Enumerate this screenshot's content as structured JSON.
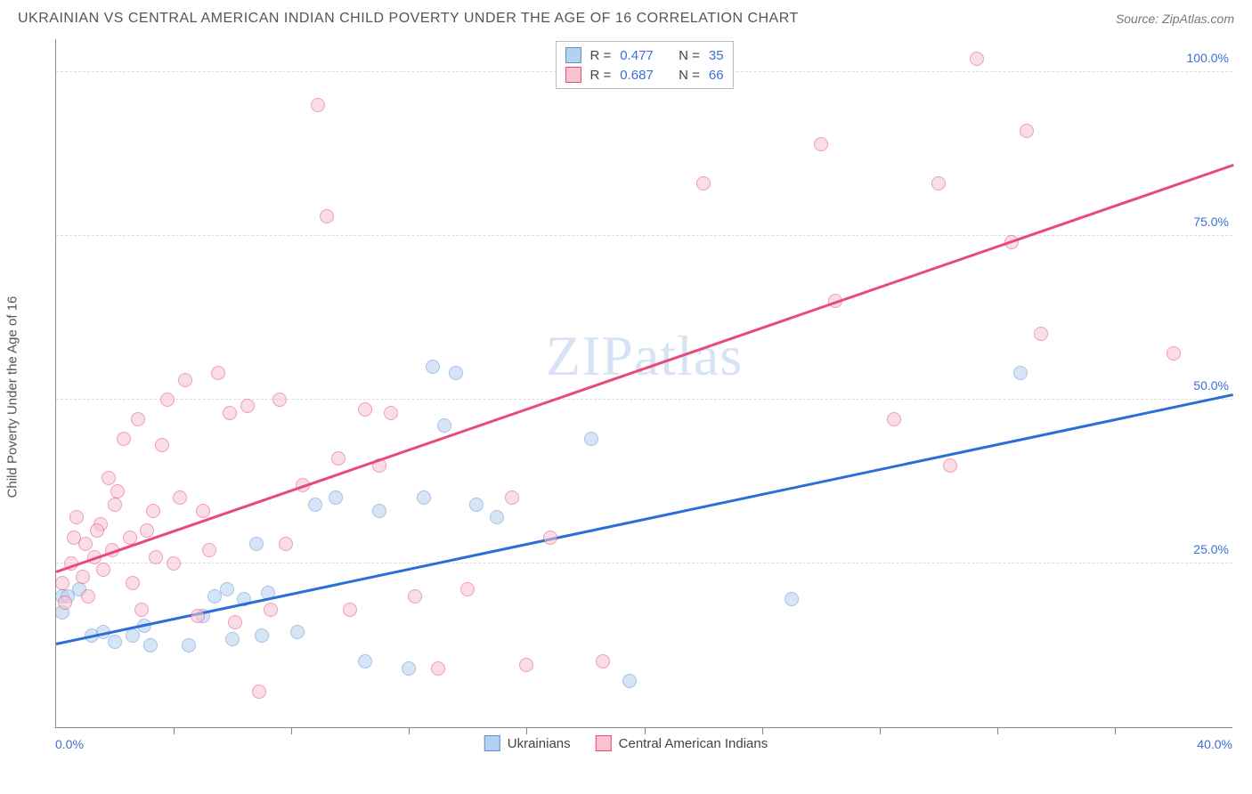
{
  "title": "UKRAINIAN VS CENTRAL AMERICAN INDIAN CHILD POVERTY UNDER THE AGE OF 16 CORRELATION CHART",
  "source": "Source: ZipAtlas.com",
  "ylabel": "Child Poverty Under the Age of 16",
  "watermark": "ZIPatlas",
  "chart": {
    "type": "scatter",
    "background_color": "#ffffff",
    "grid_color": "#dddddd",
    "axis_color": "#888888",
    "xlim": [
      0,
      40
    ],
    "ylim": [
      0,
      105
    ],
    "x_ticks": [
      0,
      20,
      40
    ],
    "x_tick_labels": [
      "0.0%",
      "",
      "40.0%"
    ],
    "y_gridlines": [
      25,
      50,
      75,
      100
    ],
    "y_tick_labels": [
      "25.0%",
      "50.0%",
      "75.0%",
      "100.0%"
    ],
    "tick_label_color": "#3b6fd6",
    "tick_label_fontsize": 14,
    "label_fontsize": 15,
    "label_color": "#555555",
    "x_minor_ticks": [
      4,
      8,
      12,
      16,
      20,
      24,
      28,
      32,
      36
    ]
  },
  "series": [
    {
      "name": "Ukrainians",
      "color_fill": "#b6d0f0",
      "color_stroke": "#5a8fd6",
      "fill_opacity": 0.55,
      "marker_radius": 8,
      "r_label": "R =",
      "r_value": "0.477",
      "n_label": "N =",
      "n_value": "35",
      "trend": {
        "x1": 0,
        "y1": 13,
        "x2": 40,
        "y2": 51,
        "color": "#2b6fd6",
        "width": 2.5
      },
      "points": [
        [
          0.2,
          20
        ],
        [
          0.2,
          17.5
        ],
        [
          0.4,
          20
        ],
        [
          0.8,
          21
        ],
        [
          1.2,
          14
        ],
        [
          1.6,
          14.5
        ],
        [
          2.0,
          13
        ],
        [
          2.6,
          14
        ],
        [
          3.0,
          15.5
        ],
        [
          3.2,
          12.5
        ],
        [
          4.5,
          12.5
        ],
        [
          5.0,
          17
        ],
        [
          5.4,
          20
        ],
        [
          5.8,
          21
        ],
        [
          6.0,
          13.5
        ],
        [
          6.4,
          19.5
        ],
        [
          6.8,
          28
        ],
        [
          7.0,
          14
        ],
        [
          7.2,
          20.5
        ],
        [
          8.2,
          14.5
        ],
        [
          8.8,
          34
        ],
        [
          9.5,
          35
        ],
        [
          10.5,
          10
        ],
        [
          11.0,
          33
        ],
        [
          12.0,
          9
        ],
        [
          12.5,
          35
        ],
        [
          12.8,
          55
        ],
        [
          13.2,
          46
        ],
        [
          13.6,
          54
        ],
        [
          14.3,
          34
        ],
        [
          15.0,
          32
        ],
        [
          18.2,
          44
        ],
        [
          19.5,
          7
        ],
        [
          25.0,
          19.5
        ],
        [
          32.8,
          54
        ]
      ]
    },
    {
      "name": "Central American Indians",
      "color_fill": "#f7c4d0",
      "color_stroke": "#e84a7a",
      "fill_opacity": 0.55,
      "marker_radius": 8,
      "r_label": "R =",
      "r_value": "0.687",
      "n_label": "N =",
      "n_value": "66",
      "trend": {
        "x1": 0,
        "y1": 24,
        "x2": 40,
        "y2": 86,
        "color": "#e84a7a",
        "width": 2.5
      },
      "points": [
        [
          0.2,
          22
        ],
        [
          0.3,
          19
        ],
        [
          0.5,
          25
        ],
        [
          0.7,
          32
        ],
        [
          0.9,
          23
        ],
        [
          1.0,
          28
        ],
        [
          1.1,
          20
        ],
        [
          1.3,
          26
        ],
        [
          1.5,
          31
        ],
        [
          1.6,
          24
        ],
        [
          1.8,
          38
        ],
        [
          1.9,
          27
        ],
        [
          2.1,
          36
        ],
        [
          2.3,
          44
        ],
        [
          2.5,
          29
        ],
        [
          2.6,
          22
        ],
        [
          2.8,
          47
        ],
        [
          2.9,
          18
        ],
        [
          3.1,
          30
        ],
        [
          3.4,
          26
        ],
        [
          3.6,
          43
        ],
        [
          3.8,
          50
        ],
        [
          4.0,
          25
        ],
        [
          4.4,
          53
        ],
        [
          4.8,
          17
        ],
        [
          5.2,
          27
        ],
        [
          5.5,
          54
        ],
        [
          5.9,
          48
        ],
        [
          6.1,
          16
        ],
        [
          6.5,
          49
        ],
        [
          6.9,
          5.5
        ],
        [
          7.3,
          18
        ],
        [
          7.6,
          50
        ],
        [
          7.8,
          28
        ],
        [
          8.4,
          37
        ],
        [
          8.9,
          95
        ],
        [
          9.2,
          78
        ],
        [
          9.6,
          41
        ],
        [
          10.0,
          18
        ],
        [
          10.5,
          48.5
        ],
        [
          11.0,
          40
        ],
        [
          11.4,
          48
        ],
        [
          12.2,
          20
        ],
        [
          13.0,
          9
        ],
        [
          14.0,
          21
        ],
        [
          16.0,
          9.5
        ],
        [
          16.8,
          29
        ],
        [
          18.6,
          10
        ],
        [
          22.0,
          83
        ],
        [
          26.0,
          89
        ],
        [
          26.5,
          65
        ],
        [
          28.5,
          47
        ],
        [
          30.0,
          83
        ],
        [
          30.4,
          40
        ],
        [
          31.3,
          102
        ],
        [
          32.5,
          74
        ],
        [
          33.0,
          91
        ],
        [
          33.5,
          60
        ],
        [
          38.0,
          57
        ],
        [
          5.0,
          33
        ],
        [
          4.2,
          35
        ],
        [
          3.3,
          33
        ],
        [
          2.0,
          34
        ],
        [
          1.4,
          30
        ],
        [
          0.6,
          29
        ],
        [
          15.5,
          35
        ]
      ]
    }
  ],
  "bottom_legend": [
    {
      "label": "Ukrainians",
      "fill": "#b6d0f0",
      "stroke": "#5a8fd6"
    },
    {
      "label": "Central American Indians",
      "fill": "#f7c4d0",
      "stroke": "#e84a7a"
    }
  ]
}
